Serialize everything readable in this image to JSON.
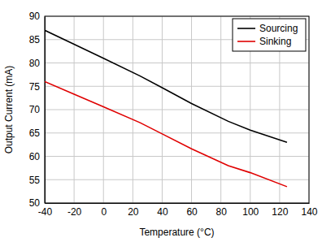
{
  "chart_data": {
    "type": "line",
    "x_label": "Temperature (°C)",
    "y_label": "Output Current (mA)",
    "x": [
      -40,
      -20,
      0,
      25,
      40,
      60,
      85,
      100,
      125
    ],
    "series": [
      {
        "name": "Sourcing",
        "color": "#000000",
        "values": [
          87,
          84,
          81,
          77.2,
          74.7,
          71.3,
          67.5,
          65.6,
          63
        ]
      },
      {
        "name": "Sinking",
        "color": "#e00000",
        "values": [
          76,
          73.3,
          70.6,
          67.2,
          64.8,
          61.6,
          58,
          56.5,
          53.5
        ]
      }
    ],
    "xlim": [
      -40,
      140
    ],
    "xticks": [
      -40,
      -20,
      0,
      20,
      40,
      60,
      80,
      100,
      120,
      140
    ],
    "ylim": [
      50,
      90
    ],
    "yticks": [
      50,
      55,
      60,
      65,
      70,
      75,
      80,
      85,
      90
    ],
    "grid": true,
    "legend": "upper right"
  }
}
